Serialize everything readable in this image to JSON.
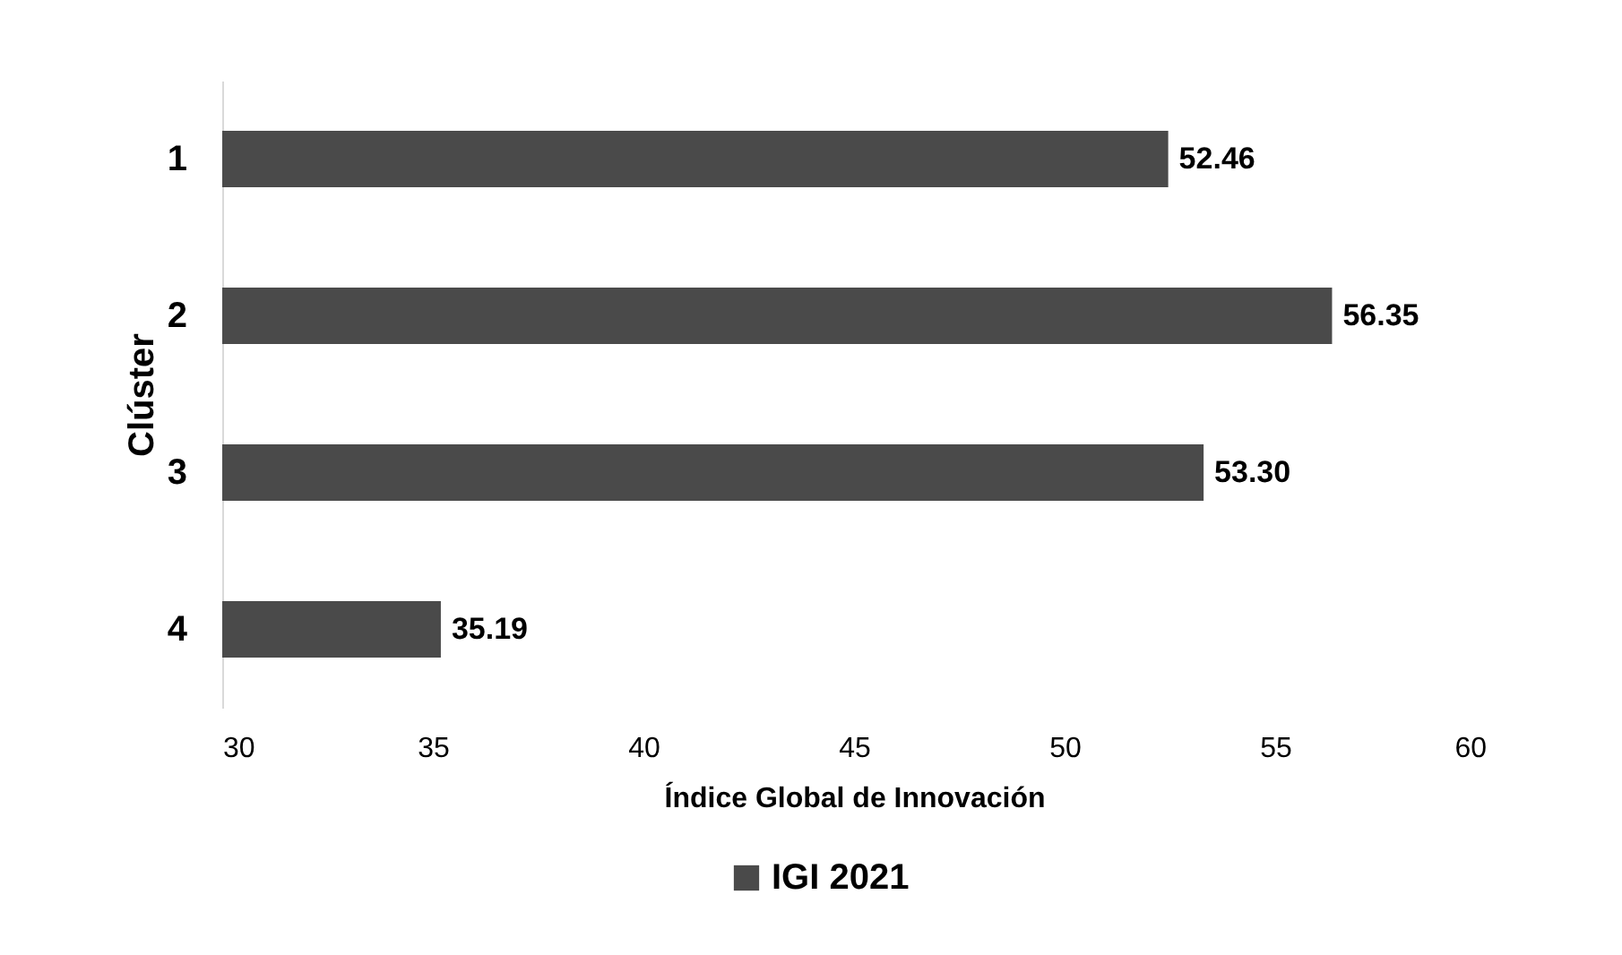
{
  "chart_data": {
    "type": "bar",
    "orientation": "horizontal",
    "categories": [
      "1",
      "2",
      "3",
      "4"
    ],
    "series": [
      {
        "name": "IGI 2021",
        "color": "#4a4a4a",
        "values": [
          52.46,
          56.35,
          53.3,
          35.19
        ]
      }
    ],
    "value_labels": [
      "52.46",
      "56.35",
      "53.30",
      "35.19"
    ],
    "xlim": [
      30,
      60
    ],
    "xticks": [
      30,
      35,
      40,
      45,
      50,
      55,
      60
    ],
    "xlabel": "Índice Global de Innovación",
    "ylabel": "Clúster",
    "grid": false,
    "legend": "bottom"
  }
}
